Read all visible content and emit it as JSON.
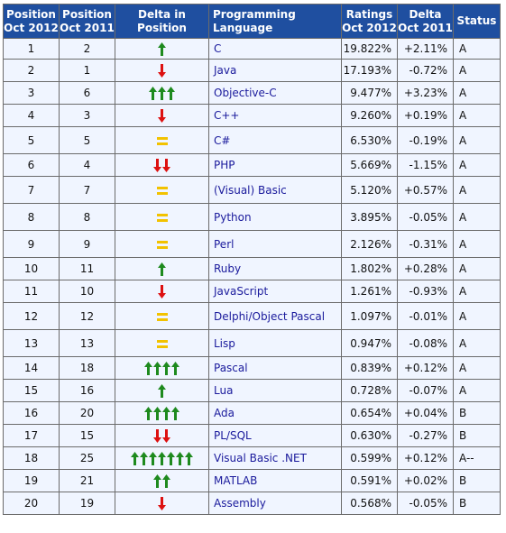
{
  "headers": {
    "pos2012": [
      "Position",
      "Oct 2012"
    ],
    "pos2011": [
      "Position",
      "Oct 2011"
    ],
    "delta_pos": "Delta in Position",
    "language": "Programming Language",
    "ratings": [
      "Ratings",
      "Oct 2012"
    ],
    "delta": [
      "Delta",
      "Oct 2011"
    ],
    "status": "Status"
  },
  "colors": {
    "header_bg": "#1f4fa0",
    "row_bg": "#f0f5ff",
    "up_arrow": "#1e8a1e",
    "down_arrow": "#dd1111",
    "equal": "#f2c200",
    "link": "#1a1a9c"
  },
  "rows": [
    {
      "p2012": "1",
      "p2011": "2",
      "move": "up",
      "count": 1,
      "lang": "C",
      "rating": "19.822%",
      "delta": "+2.11%",
      "status": "A"
    },
    {
      "p2012": "2",
      "p2011": "1",
      "move": "down",
      "count": 1,
      "lang": "Java",
      "rating": "17.193%",
      "delta": "-0.72%",
      "status": "A"
    },
    {
      "p2012": "3",
      "p2011": "6",
      "move": "up",
      "count": 3,
      "lang": "Objective-C",
      "rating": "9.477%",
      "delta": "+3.23%",
      "status": "A"
    },
    {
      "p2012": "4",
      "p2011": "3",
      "move": "down",
      "count": 1,
      "lang": "C++",
      "rating": "9.260%",
      "delta": "+0.19%",
      "status": "A"
    },
    {
      "p2012": "5",
      "p2011": "5",
      "move": "equal",
      "count": 1,
      "lang": "C#",
      "rating": "6.530%",
      "delta": "-0.19%",
      "status": "A"
    },
    {
      "p2012": "6",
      "p2011": "4",
      "move": "down",
      "count": 2,
      "lang": "PHP",
      "rating": "5.669%",
      "delta": "-1.15%",
      "status": "A"
    },
    {
      "p2012": "7",
      "p2011": "7",
      "move": "equal",
      "count": 1,
      "lang": "(Visual) Basic",
      "rating": "5.120%",
      "delta": "+0.57%",
      "status": "A"
    },
    {
      "p2012": "8",
      "p2011": "8",
      "move": "equal",
      "count": 1,
      "lang": "Python",
      "rating": "3.895%",
      "delta": "-0.05%",
      "status": "A"
    },
    {
      "p2012": "9",
      "p2011": "9",
      "move": "equal",
      "count": 1,
      "lang": "Perl",
      "rating": "2.126%",
      "delta": "-0.31%",
      "status": "A"
    },
    {
      "p2012": "10",
      "p2011": "11",
      "move": "up",
      "count": 1,
      "lang": "Ruby",
      "rating": "1.802%",
      "delta": "+0.28%",
      "status": "A"
    },
    {
      "p2012": "11",
      "p2011": "10",
      "move": "down",
      "count": 1,
      "lang": "JavaScript",
      "rating": "1.261%",
      "delta": "-0.93%",
      "status": "A"
    },
    {
      "p2012": "12",
      "p2011": "12",
      "move": "equal",
      "count": 1,
      "lang": "Delphi/Object Pascal",
      "rating": "1.097%",
      "delta": "-0.01%",
      "status": "A"
    },
    {
      "p2012": "13",
      "p2011": "13",
      "move": "equal",
      "count": 1,
      "lang": "Lisp",
      "rating": "0.947%",
      "delta": "-0.08%",
      "status": "A"
    },
    {
      "p2012": "14",
      "p2011": "18",
      "move": "up",
      "count": 4,
      "lang": "Pascal",
      "rating": "0.839%",
      "delta": "+0.12%",
      "status": "A"
    },
    {
      "p2012": "15",
      "p2011": "16",
      "move": "up",
      "count": 1,
      "lang": "Lua",
      "rating": "0.728%",
      "delta": "-0.07%",
      "status": "A"
    },
    {
      "p2012": "16",
      "p2011": "20",
      "move": "up",
      "count": 4,
      "lang": "Ada",
      "rating": "0.654%",
      "delta": "+0.04%",
      "status": "B"
    },
    {
      "p2012": "17",
      "p2011": "15",
      "move": "down",
      "count": 2,
      "lang": "PL/SQL",
      "rating": "0.630%",
      "delta": "-0.27%",
      "status": "B"
    },
    {
      "p2012": "18",
      "p2011": "25",
      "move": "up",
      "count": 7,
      "lang": "Visual Basic .NET",
      "rating": "0.599%",
      "delta": "+0.12%",
      "status": "A--"
    },
    {
      "p2012": "19",
      "p2011": "21",
      "move": "up",
      "count": 2,
      "lang": "MATLAB",
      "rating": "0.591%",
      "delta": "+0.02%",
      "status": "B"
    },
    {
      "p2012": "20",
      "p2011": "19",
      "move": "down",
      "count": 1,
      "lang": "Assembly",
      "rating": "0.568%",
      "delta": "-0.05%",
      "status": "B"
    }
  ]
}
